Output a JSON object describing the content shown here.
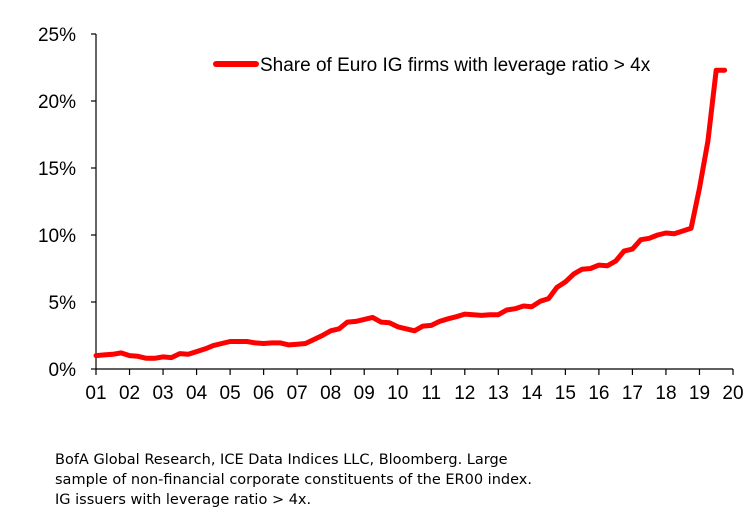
{
  "chart_data": {
    "type": "line",
    "title": "",
    "xlabel": "",
    "ylabel": "",
    "x_ticks": [
      "01",
      "02",
      "03",
      "04",
      "05",
      "06",
      "07",
      "08",
      "09",
      "10",
      "11",
      "12",
      "13",
      "14",
      "15",
      "16",
      "17",
      "18",
      "19",
      "20"
    ],
    "y_ticks": [
      "0%",
      "5%",
      "10%",
      "15%",
      "20%",
      "25%"
    ],
    "ylim": [
      0,
      25
    ],
    "xlim": [
      2001,
      2020
    ],
    "grid": false,
    "legend_position": "top-right",
    "series": [
      {
        "name": "Share of Euro IG firms with leverage ratio > 4x",
        "color": "#ff0000",
        "x": [
          2001.0,
          2001.25,
          2001.5,
          2001.75,
          2002.0,
          2002.25,
          2002.5,
          2002.75,
          2003.0,
          2003.25,
          2003.5,
          2003.75,
          2004.0,
          2004.25,
          2004.5,
          2004.75,
          2005.0,
          2005.25,
          2005.5,
          2005.75,
          2006.0,
          2006.25,
          2006.5,
          2006.75,
          2007.0,
          2007.25,
          2007.5,
          2007.75,
          2008.0,
          2008.25,
          2008.5,
          2008.75,
          2009.0,
          2009.25,
          2009.5,
          2009.75,
          2010.0,
          2010.25,
          2010.5,
          2010.75,
          2011.0,
          2011.25,
          2011.5,
          2011.75,
          2012.0,
          2012.25,
          2012.5,
          2012.75,
          2013.0,
          2013.25,
          2013.5,
          2013.75,
          2014.0,
          2014.25,
          2014.5,
          2014.75,
          2015.0,
          2015.25,
          2015.5,
          2015.75,
          2016.0,
          2016.25,
          2016.5,
          2016.75,
          2017.0,
          2017.25,
          2017.5,
          2017.75,
          2018.0,
          2018.25,
          2018.5,
          2018.75,
          2019.0,
          2019.25,
          2019.5,
          2019.75
        ],
        "values": [
          1.0,
          1.05,
          1.1,
          1.2,
          1.0,
          0.95,
          0.8,
          0.8,
          0.9,
          0.85,
          1.15,
          1.1,
          1.3,
          1.5,
          1.75,
          1.9,
          2.05,
          2.05,
          2.05,
          1.95,
          1.9,
          1.95,
          1.95,
          1.8,
          1.85,
          1.9,
          2.2,
          2.5,
          2.85,
          3.0,
          3.5,
          3.55,
          3.7,
          3.85,
          3.5,
          3.45,
          3.15,
          3.0,
          2.85,
          3.2,
          3.25,
          3.55,
          3.75,
          3.9,
          4.1,
          4.05,
          4.0,
          4.05,
          4.05,
          4.4,
          4.5,
          4.7,
          4.65,
          5.05,
          5.25,
          6.1,
          6.5,
          7.1,
          7.45,
          7.5,
          7.75,
          7.7,
          8.05,
          8.8,
          8.95,
          9.65,
          9.75,
          10.0,
          10.15,
          10.1,
          10.3,
          10.5,
          13.5,
          17.0,
          22.3,
          22.3
        ]
      }
    ]
  },
  "source_note": [
    "BofA Global Research, ICE Data Indices LLC, Bloomberg. Large",
    "sample of non-financial corporate constituents of the ER00 index.",
    "IG issuers with leverage ratio > 4x."
  ]
}
